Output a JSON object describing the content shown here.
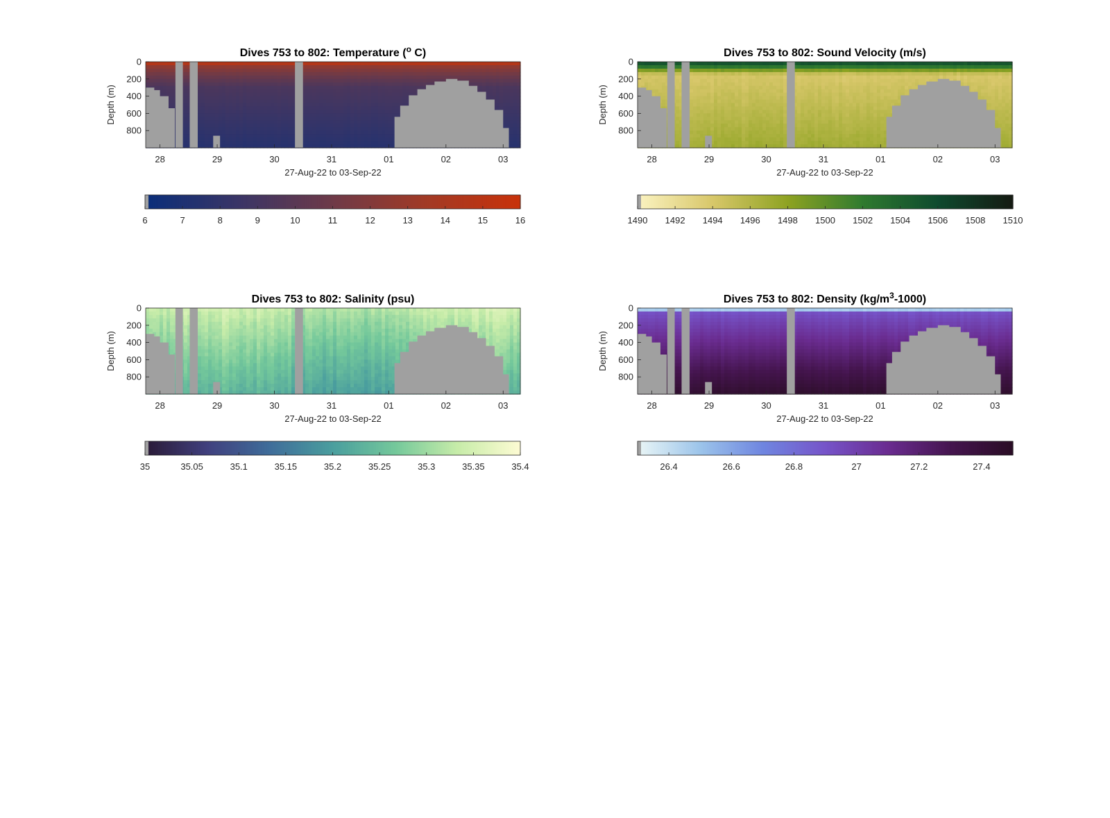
{
  "figure": {
    "xlabel": "27-Aug-22 to 03-Sep-22",
    "ylabel": "Depth (m)",
    "x_range_days": [
      27.75,
      34.3
    ],
    "x_ticks": [
      {
        "day": 28,
        "label": "28"
      },
      {
        "day": 29,
        "label": "29"
      },
      {
        "day": 30,
        "label": "30"
      },
      {
        "day": 31,
        "label": "31"
      },
      {
        "day": 32,
        "label": "01"
      },
      {
        "day": 33,
        "label": "02"
      },
      {
        "day": 34,
        "label": "03"
      }
    ],
    "y_range_m": [
      0,
      1000
    ],
    "y_ticks": [
      0,
      200,
      400,
      600,
      800
    ],
    "mask_color": "#a0a0a0",
    "mask_regions": {
      "seafloor_depth_profile": [
        {
          "day": 27.75,
          "depth": 300
        },
        {
          "day": 27.9,
          "depth": 330
        },
        {
          "day": 28.0,
          "depth": 400
        },
        {
          "day": 28.15,
          "depth": 540
        },
        {
          "day": 28.26,
          "depth": 1000
        }
      ],
      "gaps": [
        {
          "day_start": 28.27,
          "day_end": 28.4,
          "depth_top": 0
        },
        {
          "day_start": 28.52,
          "day_end": 28.66,
          "depth_top": 0
        },
        {
          "day_start": 30.36,
          "day_end": 30.5,
          "depth_top": 0
        }
      ],
      "small_bump": {
        "day_start": 28.93,
        "day_end": 29.05,
        "depth_top": 860
      },
      "seamount": [
        {
          "day": 32.08,
          "depth": 1000
        },
        {
          "day": 32.1,
          "depth": 640
        },
        {
          "day": 32.2,
          "depth": 510
        },
        {
          "day": 32.35,
          "depth": 390
        },
        {
          "day": 32.5,
          "depth": 320
        },
        {
          "day": 32.65,
          "depth": 270
        },
        {
          "day": 32.8,
          "depth": 230
        },
        {
          "day": 33.0,
          "depth": 200
        },
        {
          "day": 33.2,
          "depth": 220
        },
        {
          "day": 33.4,
          "depth": 280
        },
        {
          "day": 33.55,
          "depth": 350
        },
        {
          "day": 33.7,
          "depth": 440
        },
        {
          "day": 33.85,
          "depth": 560
        },
        {
          "day": 34.0,
          "depth": 770
        },
        {
          "day": 34.1,
          "depth": 1000
        }
      ]
    }
  },
  "chart_data": [
    {
      "type": "heatmap",
      "title": "Dives 753 to 802: Temperature (° C)",
      "title_parts": {
        "main": "Dives 753 to 802: Temperature (",
        "sup": "o",
        "tail": " C)"
      },
      "colorbar": {
        "range": [
          6,
          16
        ],
        "ticks": [
          6,
          7,
          8,
          9,
          10,
          11,
          12,
          13,
          14,
          15,
          16
        ],
        "tick_labels": [
          "6",
          "7",
          "8",
          "9",
          "10",
          "11",
          "12",
          "13",
          "14",
          "15",
          "16"
        ],
        "colormap": [
          "#0a2e7a",
          "#3a3566",
          "#6e3a48",
          "#a23a25",
          "#c8320a"
        ]
      },
      "surface_value": 14.5,
      "deep_value": 7.5,
      "gradient_depth": 300
    },
    {
      "type": "heatmap",
      "title": "Dives 753 to 802: Sound Velocity (m/s)",
      "title_parts": {
        "main": "Dives 753 to 802: Sound Velocity (m/s)",
        "sup": "",
        "tail": ""
      },
      "colorbar": {
        "range": [
          1490,
          1510
        ],
        "ticks": [
          1490,
          1492,
          1494,
          1496,
          1498,
          1500,
          1502,
          1504,
          1506,
          1508,
          1510
        ],
        "tick_labels": [
          "1490",
          "1492",
          "1494",
          "1496",
          "1498",
          "1500",
          "1502",
          "1504",
          "1506",
          "1508",
          "1510"
        ],
        "colormap": [
          "#fbf3c1",
          "#d8c76a",
          "#8ea322",
          "#2f7a2f",
          "#0e4a2e",
          "#151a12"
        ]
      },
      "surface_value": 1505,
      "mid_value": 1494,
      "deep_value": 1497,
      "gradient_depth": 150
    },
    {
      "type": "heatmap",
      "title": "Dives 753 to 802: Salinity (psu)",
      "title_parts": {
        "main": "Dives 753 to 802: Salinity (psu)",
        "sup": "",
        "tail": ""
      },
      "colorbar": {
        "range": [
          35,
          35.4
        ],
        "ticks": [
          35,
          35.05,
          35.1,
          35.15,
          35.2,
          35.25,
          35.3,
          35.35,
          35.4
        ],
        "tick_labels": [
          "35",
          "35.05",
          "35.1",
          "35.15",
          "35.2",
          "35.25",
          "35.3",
          "35.35",
          "35.4"
        ],
        "colormap": [
          "#2a1a36",
          "#40407e",
          "#3f6d9a",
          "#4a9e9e",
          "#74c89b",
          "#c7eca9",
          "#fdfbd3"
        ]
      },
      "surface_value": 35.33,
      "deep_value": 35.22,
      "gradient_depth": 600
    },
    {
      "type": "heatmap",
      "title": "Dives 753 to 802: Density (kg/m³-1000)",
      "title_parts": {
        "main": "Dives 753 to 802: Density (kg/m",
        "sup": "3",
        "tail": "-1000)"
      },
      "colorbar": {
        "range": [
          26.3,
          27.5
        ],
        "ticks": [
          26.4,
          26.6,
          26.8,
          27,
          27.2,
          27.4
        ],
        "tick_labels": [
          "26.4",
          "26.6",
          "26.8",
          "27",
          "27.2",
          "27.4"
        ],
        "colormap": [
          "#eaf6f6",
          "#9cc4ea",
          "#6f86e0",
          "#7654c9",
          "#6a2c90",
          "#45154f",
          "#2a0d25"
        ]
      },
      "surface_value": 26.45,
      "deep_value": 27.45,
      "gradient_depth": 1000
    }
  ]
}
